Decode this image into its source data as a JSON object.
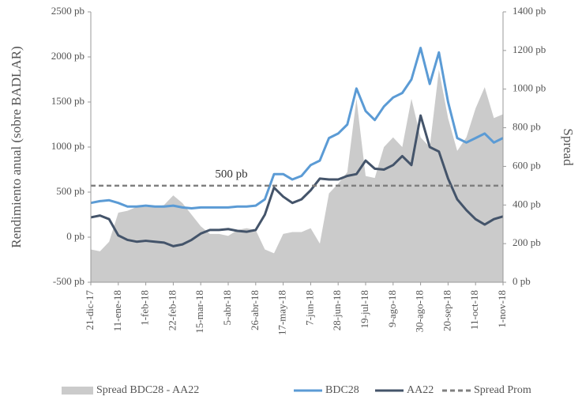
{
  "chart_data": {
    "type": "line",
    "y_label": "Rendimiento anual (sobre BADLAR)",
    "y2_label": "Spread",
    "annotation": "500 pb",
    "categories": [
      "21-dic-17",
      null,
      null,
      "11-ene-18",
      null,
      null,
      "1-feb-18",
      null,
      null,
      "22-feb-18",
      null,
      null,
      "15-mar-18",
      null,
      null,
      "5-abr-18",
      null,
      null,
      "26-abr-18",
      null,
      null,
      "17-may-18",
      null,
      null,
      "7-jun-18",
      null,
      null,
      "28-jun-18",
      null,
      null,
      "19-jul-18",
      null,
      null,
      "9-ago-18",
      null,
      null,
      "30-ago-18",
      null,
      null,
      "20-sep-18",
      null,
      null,
      "11-oct-18",
      null,
      null,
      "1-nov-18"
    ],
    "series": [
      {
        "name": "Spread BDC28 - AA22",
        "color": "#cbcbcb",
        "kind": "area",
        "axis": "y2",
        "values": [
          170,
          160,
          210,
          360,
          370,
          390,
          390,
          390,
          400,
          450,
          410,
          350,
          290,
          250,
          250,
          240,
          270,
          280,
          270,
          170,
          150,
          250,
          260,
          260,
          280,
          200,
          460,
          510,
          570,
          950,
          550,
          540,
          700,
          750,
          700,
          950,
          750,
          700,
          1100,
          850,
          680,
          750,
          900,
          1010,
          850,
          870
        ]
      },
      {
        "name": "BDC28",
        "color": "#5b9bd5",
        "kind": "line",
        "values": [
          380,
          400,
          410,
          380,
          340,
          340,
          350,
          340,
          340,
          350,
          330,
          320,
          330,
          330,
          330,
          330,
          340,
          340,
          350,
          420,
          700,
          700,
          640,
          680,
          800,
          850,
          1100,
          1150,
          1250,
          1650,
          1400,
          1300,
          1450,
          1550,
          1600,
          1750,
          2100,
          1700,
          2050,
          1500,
          1100,
          1050,
          1100,
          1150,
          1050,
          1100
        ]
      },
      {
        "name": "AA22",
        "color": "#44546a",
        "kind": "line",
        "values": [
          220,
          240,
          200,
          20,
          -30,
          -50,
          -40,
          -50,
          -60,
          -100,
          -80,
          -30,
          40,
          80,
          80,
          90,
          70,
          60,
          80,
          250,
          550,
          450,
          380,
          420,
          520,
          650,
          640,
          640,
          680,
          700,
          850,
          760,
          750,
          800,
          900,
          800,
          1350,
          1000,
          950,
          650,
          420,
          300,
          200,
          140,
          200,
          230
        ]
      },
      {
        "name": "Spread Prom",
        "color": "#808080",
        "kind": "dash",
        "axis": "y2",
        "value": 500
      }
    ],
    "ylim": [
      -500,
      2500
    ],
    "yticks": [
      {
        "value": -500,
        "label": "-500 pb"
      },
      {
        "value": 0,
        "label": "0 pb"
      },
      {
        "value": 500,
        "label": "500 pb"
      },
      {
        "value": 1000,
        "label": "1000 pb"
      },
      {
        "value": 1500,
        "label": "1500 pb"
      },
      {
        "value": 2000,
        "label": "2000 pb"
      },
      {
        "value": 2500,
        "label": "2500 pb"
      }
    ],
    "y2lim": [
      0,
      1400
    ],
    "y2ticks": [
      {
        "value": 0,
        "label": "0 pb"
      },
      {
        "value": 200,
        "label": "200 pb"
      },
      {
        "value": 400,
        "label": "400 pb"
      },
      {
        "value": 600,
        "label": "600 pb"
      },
      {
        "value": 800,
        "label": "800 pb"
      },
      {
        "value": 1000,
        "label": "1000 pb"
      },
      {
        "value": 1200,
        "label": "1200 pb"
      },
      {
        "value": 1400,
        "label": "1400 pb"
      }
    ],
    "legend": "bottom"
  }
}
